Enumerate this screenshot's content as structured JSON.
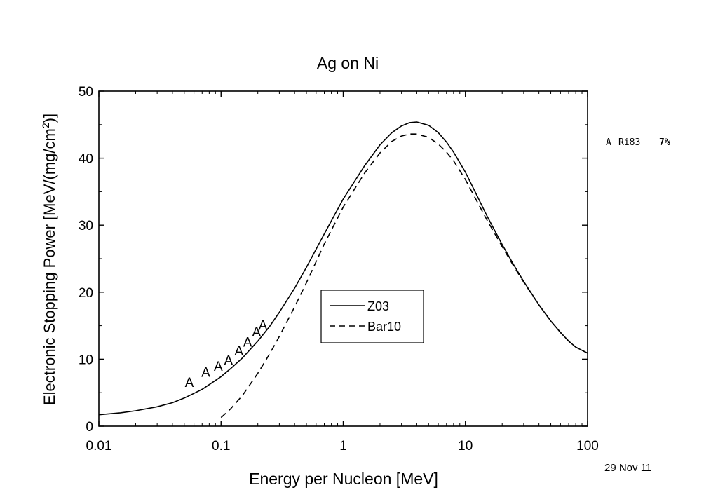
{
  "chart_data": {
    "type": "line",
    "title": "Ag on Ni",
    "xlabel": "Energy per Nucleon [MeV]",
    "ylabel_main": "Electronic Stopping Power [MeV/(mg/cm",
    "ylabel_sup": "2",
    "ylabel_close": ")]",
    "x_scale": "log",
    "xlim": [
      0.01,
      100
    ],
    "ylim": [
      0,
      50
    ],
    "x_ticks": [
      0.01,
      0.1,
      1,
      10,
      100
    ],
    "x_tick_labels": [
      "0.01",
      "0.1",
      "1",
      "10",
      "100"
    ],
    "y_ticks": [
      0,
      10,
      20,
      30,
      40,
      50
    ],
    "y_tick_labels": [
      "0",
      "10",
      "20",
      "30",
      "40",
      "50"
    ],
    "grid": false,
    "legend_position": "center",
    "series": [
      {
        "name": "Z03",
        "style": "solid",
        "color": "#000000",
        "x": [
          0.01,
          0.015,
          0.02,
          0.03,
          0.04,
          0.05,
          0.06,
          0.07,
          0.08,
          0.1,
          0.12,
          0.15,
          0.2,
          0.25,
          0.3,
          0.4,
          0.5,
          0.7,
          1.0,
          1.5,
          2.0,
          2.5,
          3.0,
          3.5,
          4.0,
          5.0,
          6.0,
          7.0,
          8.0,
          10,
          12,
          15,
          20,
          25,
          30,
          40,
          50,
          60,
          70,
          80,
          100
        ],
        "y": [
          1.7,
          2.0,
          2.3,
          2.9,
          3.5,
          4.2,
          4.9,
          5.5,
          6.2,
          7.4,
          8.6,
          10.2,
          12.7,
          14.9,
          17.0,
          20.6,
          23.7,
          28.7,
          33.9,
          38.9,
          42.0,
          43.8,
          44.8,
          45.3,
          45.4,
          44.9,
          43.8,
          42.4,
          40.9,
          37.9,
          35.0,
          31.4,
          27.1,
          24.0,
          21.6,
          18.1,
          15.7,
          14.0,
          12.7,
          11.8,
          10.9
        ]
      },
      {
        "name": "Bar10",
        "style": "dashed",
        "color": "#000000",
        "x": [
          0.1,
          0.12,
          0.15,
          0.2,
          0.25,
          0.3,
          0.4,
          0.5,
          0.7,
          1.0,
          1.5,
          2.0,
          2.5,
          3.0,
          3.5,
          4.0,
          5.0,
          6.0,
          7.0,
          8.0,
          10,
          12,
          15,
          20,
          25,
          30,
          40,
          50,
          60,
          70,
          80,
          100
        ],
        "y": [
          1.3,
          2.6,
          4.6,
          7.9,
          10.8,
          13.4,
          17.8,
          21.4,
          27.2,
          32.7,
          37.8,
          40.8,
          42.5,
          43.3,
          43.6,
          43.6,
          43.1,
          42.1,
          40.9,
          39.6,
          36.8,
          34.1,
          30.8,
          26.8,
          23.8,
          21.5,
          18.1,
          15.7,
          14.0,
          12.7,
          11.8,
          10.9
        ]
      },
      {
        "name": "Ri83",
        "style": "markers",
        "marker": "A",
        "color": "#000000",
        "x": [
          0.055,
          0.075,
          0.095,
          0.115,
          0.14,
          0.165,
          0.195,
          0.22
        ],
        "y": [
          6.6,
          8.1,
          9.0,
          9.9,
          11.3,
          12.6,
          14.1,
          15.1
        ]
      }
    ],
    "legend": [
      {
        "label": "Z03",
        "style": "solid"
      },
      {
        "label": "Bar10",
        "style": "dashed"
      }
    ],
    "annotations": {
      "side_marker": "A",
      "side_name": "Ri83",
      "side_pct": "7%",
      "date": "29 Nov 11"
    }
  }
}
